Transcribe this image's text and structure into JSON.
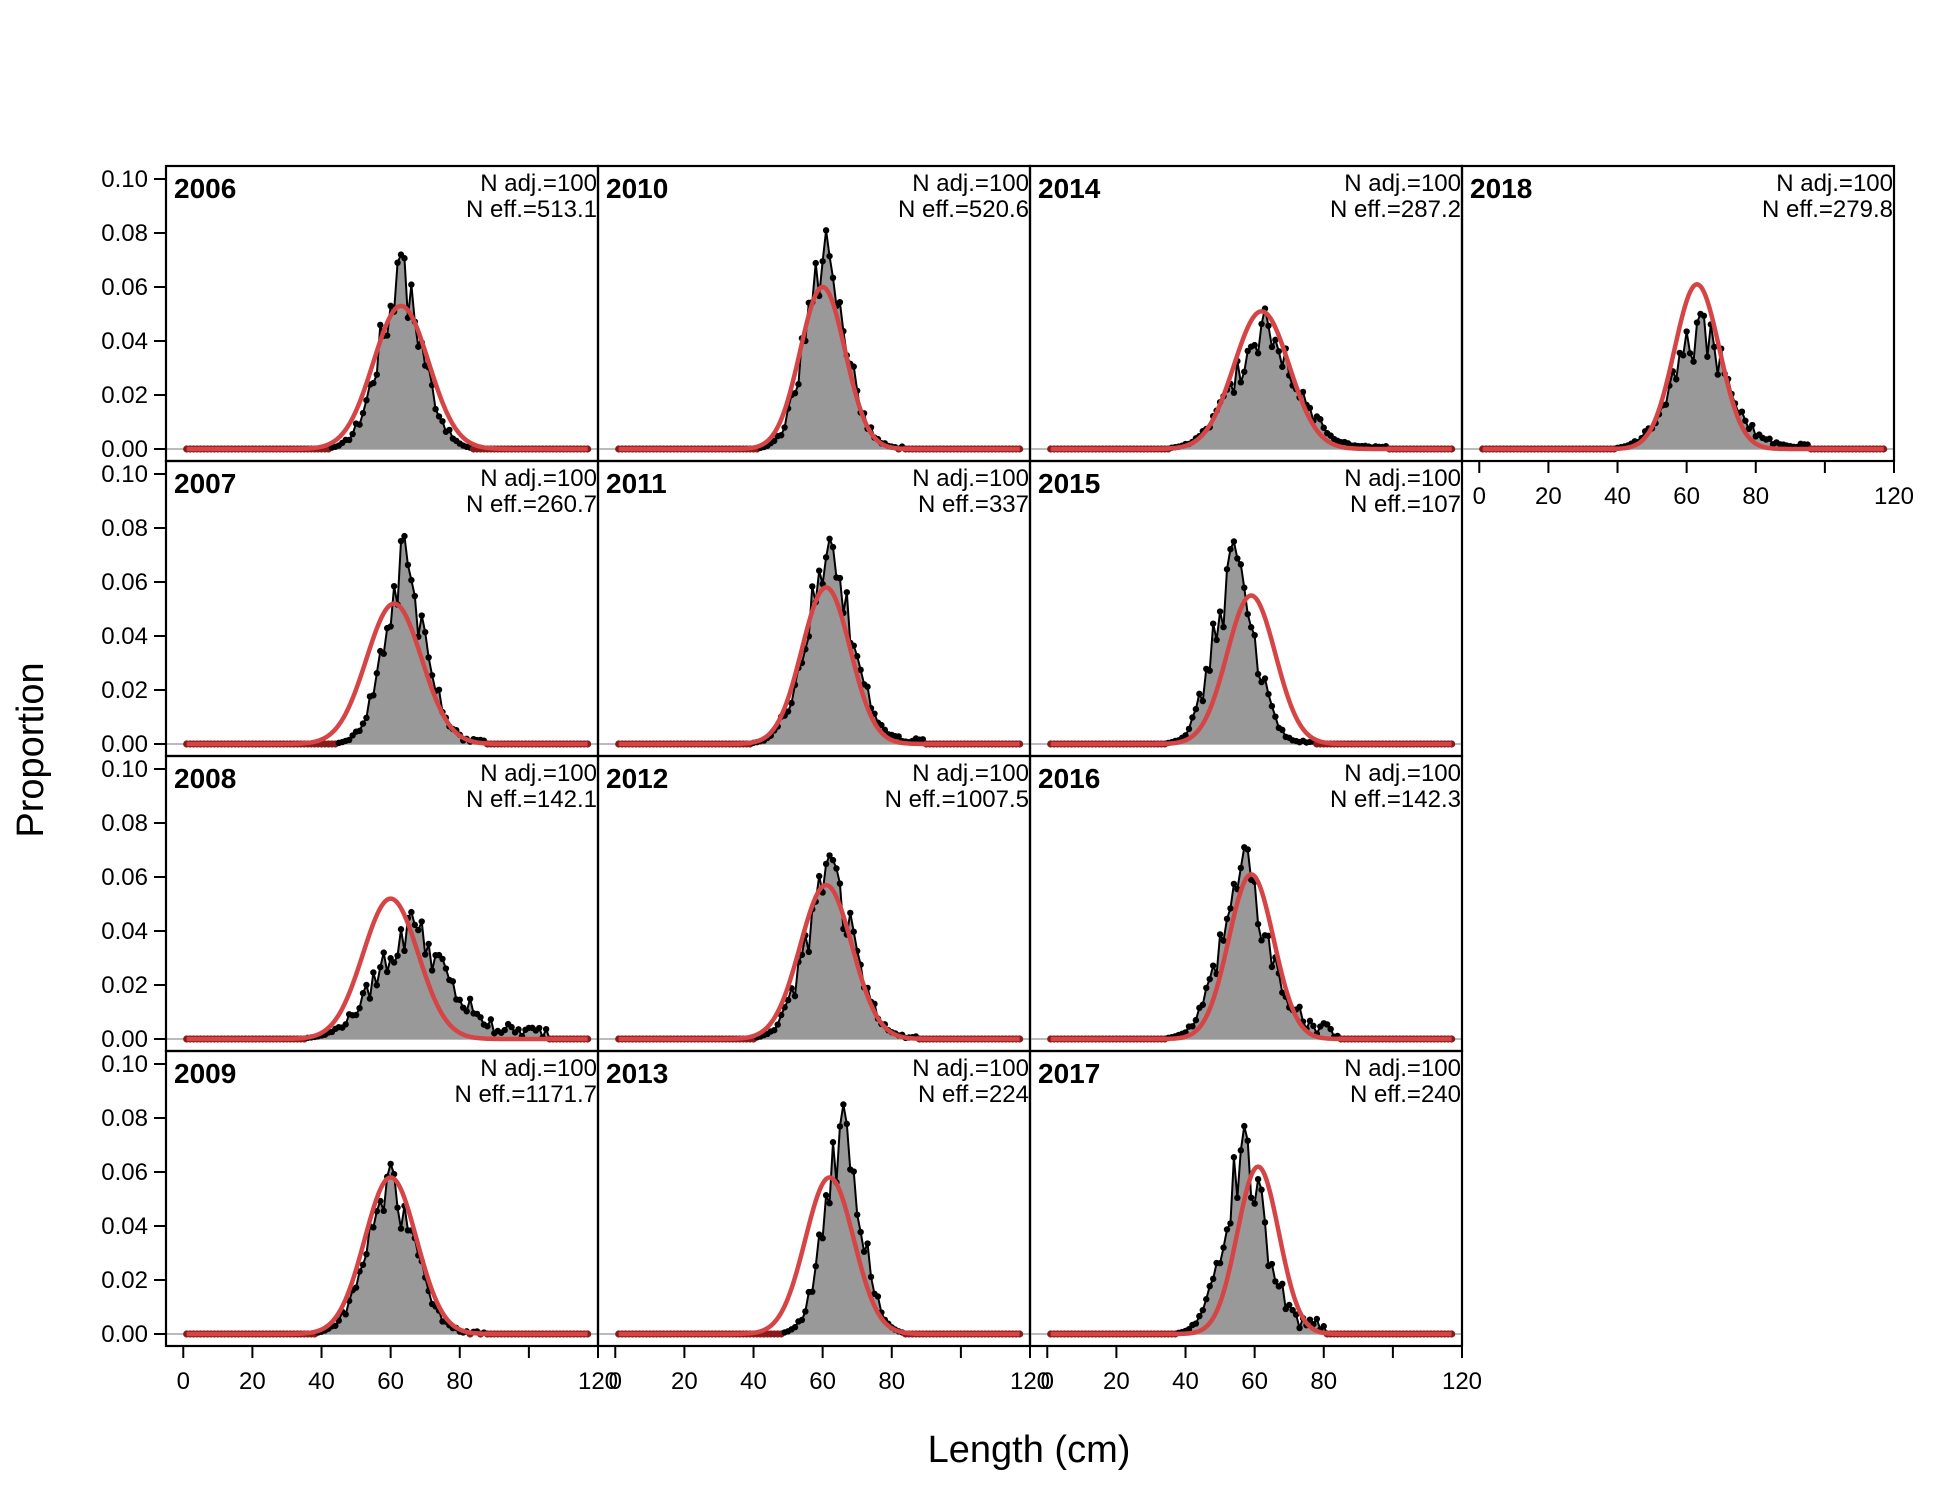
{
  "chart_data": {
    "type": "area",
    "xlabel": "Length (cm)",
    "ylabel": "Proportion",
    "xlim": [
      -5,
      120
    ],
    "ylim": [
      0,
      0.1
    ],
    "x_ticks": [
      0,
      20,
      40,
      60,
      80,
      120
    ],
    "x_minor_tick": 100,
    "y_ticks": [
      "0.00",
      "0.02",
      "0.04",
      "0.06",
      "0.08",
      "0.10"
    ],
    "colors": {
      "observed_fill": "#999999",
      "observed_line": "#000000",
      "expected_line": "#d64545",
      "zero_points": "#8b1a1a",
      "zero_line": "#bbbbbb"
    },
    "panels": [
      {
        "year": "2006",
        "n_adj": "N adj.=100",
        "n_eff": "N eff.=513.1",
        "obs_peak": 0.072,
        "obs_mode": 63,
        "obs_sd": 6.5,
        "exp_peak": 0.053,
        "exp_mode": 63,
        "exp_sd": 8,
        "tail": 0.0
      },
      {
        "year": "2007",
        "n_adj": "N adj.=100",
        "n_eff": "N eff.=260.7",
        "obs_peak": 0.077,
        "obs_mode": 64,
        "obs_sd": 6,
        "exp_peak": 0.052,
        "exp_mode": 61,
        "exp_sd": 8,
        "tail": 0.003
      },
      {
        "year": "2008",
        "n_adj": "N adj.=100",
        "n_eff": "N eff.=142.1",
        "obs_peak": 0.047,
        "obs_mode": 66,
        "obs_sd": 10,
        "exp_peak": 0.052,
        "exp_mode": 60,
        "exp_sd": 8,
        "tail": 0.005
      },
      {
        "year": "2009",
        "n_adj": "N adj.=100",
        "n_eff": "N eff.=1171.7",
        "obs_peak": 0.063,
        "obs_mode": 60,
        "obs_sd": 7,
        "exp_peak": 0.058,
        "exp_mode": 60,
        "exp_sd": 7.5,
        "tail": 0.001
      },
      {
        "year": "2010",
        "n_adj": "N adj.=100",
        "n_eff": "N eff.=520.6",
        "obs_peak": 0.081,
        "obs_mode": 61,
        "obs_sd": 6,
        "exp_peak": 0.06,
        "exp_mode": 60,
        "exp_sd": 6.5,
        "tail": 0.001
      },
      {
        "year": "2011",
        "n_adj": "N adj.=100",
        "n_eff": "N eff.=337",
        "obs_peak": 0.076,
        "obs_mode": 62,
        "obs_sd": 7,
        "exp_peak": 0.058,
        "exp_mode": 61,
        "exp_sd": 7,
        "tail": 0.002
      },
      {
        "year": "2012",
        "n_adj": "N adj.=100",
        "n_eff": "N eff.=1007.5",
        "obs_peak": 0.068,
        "obs_mode": 62,
        "obs_sd": 7,
        "exp_peak": 0.057,
        "exp_mode": 61,
        "exp_sd": 7.5,
        "tail": 0.001
      },
      {
        "year": "2013",
        "n_adj": "N adj.=100",
        "n_eff": "N eff.=224",
        "obs_peak": 0.085,
        "obs_mode": 66,
        "obs_sd": 5.5,
        "exp_peak": 0.058,
        "exp_mode": 62,
        "exp_sd": 7,
        "tail": 0.0
      },
      {
        "year": "2014",
        "n_adj": "N adj.=100",
        "n_eff": "N eff.=287.2",
        "obs_peak": 0.052,
        "obs_mode": 63,
        "obs_sd": 9,
        "exp_peak": 0.051,
        "exp_mode": 62,
        "exp_sd": 8,
        "tail": 0.001
      },
      {
        "year": "2015",
        "n_adj": "N adj.=100",
        "n_eff": "N eff.=107",
        "obs_peak": 0.075,
        "obs_mode": 54,
        "obs_sd": 6,
        "exp_peak": 0.055,
        "exp_mode": 59,
        "exp_sd": 7,
        "tail": 0.001
      },
      {
        "year": "2016",
        "n_adj": "N adj.=100",
        "n_eff": "N eff.=142.3",
        "obs_peak": 0.071,
        "obs_mode": 57,
        "obs_sd": 7,
        "exp_peak": 0.061,
        "exp_mode": 59,
        "exp_sd": 6.5,
        "tail": 0.008
      },
      {
        "year": "2017",
        "n_adj": "N adj.=100",
        "n_eff": "N eff.=240",
        "obs_peak": 0.077,
        "obs_mode": 57,
        "obs_sd": 6,
        "exp_peak": 0.062,
        "exp_mode": 61,
        "exp_sd": 6,
        "tail": 0.006
      },
      {
        "year": "2018",
        "n_adj": "N adj.=100",
        "n_eff": "N eff.=279.8",
        "obs_peak": 0.05,
        "obs_mode": 64,
        "obs_sd": 8,
        "exp_peak": 0.061,
        "exp_mode": 63,
        "exp_sd": 6.5,
        "tail": 0.002
      }
    ]
  }
}
